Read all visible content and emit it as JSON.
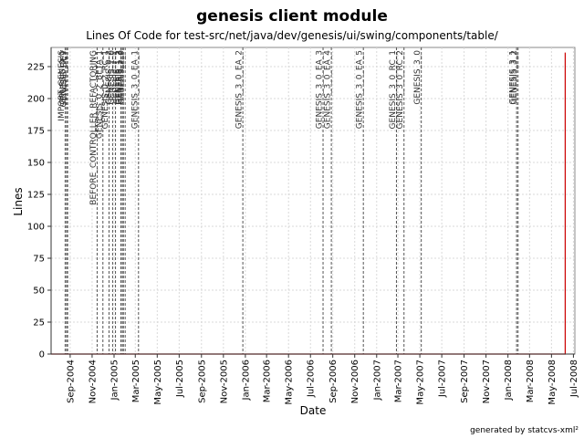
{
  "chart_data": {
    "type": "line",
    "title": "genesis client module",
    "subtitle": "Lines Of Code for test-src/net/java/dev/genesis/ui/swing/components/table/",
    "xlabel": "Date",
    "ylabel": "Lines",
    "ylim": [
      0,
      240
    ],
    "yticks": [
      0,
      25,
      50,
      75,
      100,
      125,
      150,
      175,
      200,
      225
    ],
    "xlim": [
      "2004-07-10",
      "2008-07-05"
    ],
    "xticks": [
      "2004-09-01",
      "2004-11-01",
      "2005-01-01",
      "2005-03-01",
      "2005-05-01",
      "2005-07-01",
      "2005-09-01",
      "2005-11-01",
      "2006-01-01",
      "2006-03-01",
      "2006-05-01",
      "2006-07-01",
      "2006-09-01",
      "2006-11-01",
      "2007-01-01",
      "2007-03-01",
      "2007-05-01",
      "2007-07-01",
      "2007-09-01",
      "2007-11-01",
      "2008-01-01",
      "2008-03-01",
      "2008-05-01",
      "2008-07-01"
    ],
    "xtick_labels": [
      "Sep-2004",
      "Nov-2004",
      "Jan-2005",
      "Mar-2005",
      "May-2005",
      "Jul-2005",
      "Sep-2005",
      "Nov-2005",
      "Jan-2006",
      "Mar-2006",
      "May-2006",
      "Jul-2006",
      "Sep-2006",
      "Nov-2006",
      "Jan-2007",
      "Mar-2007",
      "May-2007",
      "Jul-2007",
      "Sep-2007",
      "Nov-2007",
      "Jan-2008",
      "Mar-2008",
      "May-2008",
      "Jul-2008"
    ],
    "grid": true,
    "series": [
      {
        "color": "#cc0000",
        "points": [
          {
            "x": "2004-07-10",
            "y": 0
          },
          {
            "x": "2008-06-08",
            "y": 0
          },
          {
            "x": "2008-06-08",
            "y": 236
          }
        ]
      }
    ],
    "tags": [
      {
        "label": "IMPORT_GENESIS",
        "date": "2004-08-18"
      },
      {
        "label": "GENESIS_0_1",
        "date": "2004-08-22"
      },
      {
        "label": "GENESIS_DEV",
        "date": "2004-08-25"
      },
      {
        "label": "BEFORE_CONTROLLER_REFACTORING",
        "date": "2004-11-15"
      },
      {
        "label": "GENESIS_0_2_BETA_1",
        "date": "2004-12-01"
      },
      {
        "label": "GENESIS_0_2_RC_1",
        "date": "2004-12-18"
      },
      {
        "label": "GENESIS_0_2",
        "date": "2004-12-28"
      },
      {
        "label": "GENESIS_1_0",
        "date": "2005-01-05"
      },
      {
        "label": "GENESIS_1_1",
        "date": "2005-01-20"
      },
      {
        "label": "GENESIS_1_2",
        "date": "2005-01-24"
      },
      {
        "label": "GENESIS_1_3",
        "date": "2005-01-27"
      },
      {
        "label": "GENESIS_2_0",
        "date": "2005-02-01"
      },
      {
        "label": "GENESIS_3_0_EA_1",
        "date": "2005-03-10"
      },
      {
        "label": "GENESIS_3_0_EA_2",
        "date": "2005-12-25"
      },
      {
        "label": "GENESIS_3_0_EA_3",
        "date": "2006-08-05"
      },
      {
        "label": "GENESIS_3_0_EA_4",
        "date": "2006-08-28"
      },
      {
        "label": "GENESIS_3_0_EA_5",
        "date": "2006-11-25"
      },
      {
        "label": "GENESIS_3_0_RC_1",
        "date": "2007-02-25"
      },
      {
        "label": "GENESIS_3_0_RC_2",
        "date": "2007-03-18"
      },
      {
        "label": "GENESIS_3_0",
        "date": "2007-05-05"
      },
      {
        "label": "GENESIS_3_1",
        "date": "2008-01-25"
      },
      {
        "label": "GENESIS_3_2",
        "date": "2008-01-29"
      }
    ]
  },
  "footer": "generated by statcvs-xml²"
}
